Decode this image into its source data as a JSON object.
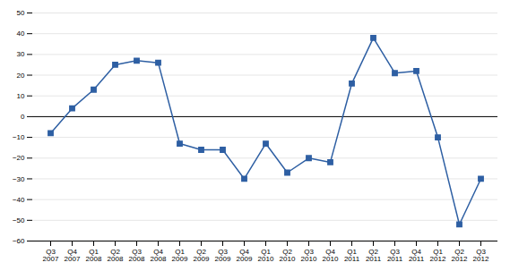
{
  "chart_data": {
    "type": "line",
    "categories": [
      "Q3\n2007",
      "Q4\n2007",
      "Q1\n2008",
      "Q2\n2008",
      "Q3\n2008",
      "Q4\n2008",
      "Q1\n2009",
      "Q2\n2009",
      "Q3\n2009",
      "Q4\n2009",
      "Q1\n2010",
      "Q2\n2010",
      "Q3\n2010",
      "Q4\n2010",
      "Q1\n2011",
      "Q2\n2011",
      "Q3\n2011",
      "Q4\n2011",
      "Q1\n2012",
      "Q2\n2012",
      "Q3\n2012"
    ],
    "values": [
      -8,
      4,
      13,
      25,
      27,
      26,
      -13,
      -16,
      -16,
      -30,
      -13,
      -27,
      -20,
      -22,
      16,
      38,
      21,
      22,
      -10,
      -52,
      -30
    ],
    "color": "#2E5FA3",
    "marker": "square",
    "ylim": [
      -60,
      50
    ],
    "yticks": [
      -60,
      -50,
      -40,
      -30,
      -20,
      -10,
      0,
      10,
      20,
      30,
      40,
      50
    ],
    "grid": true
  }
}
